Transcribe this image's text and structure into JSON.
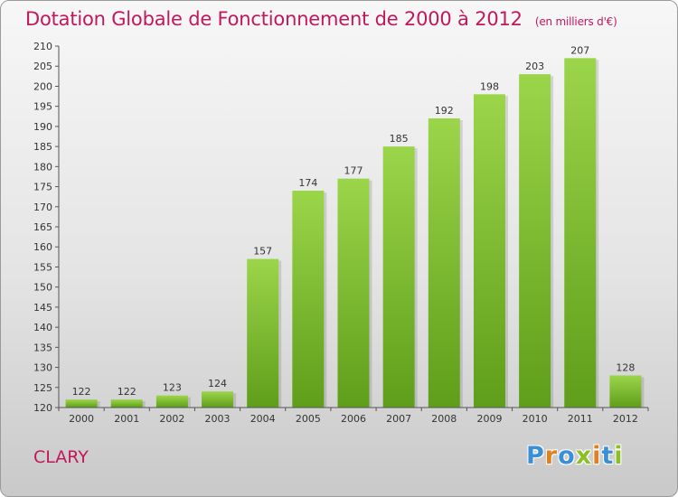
{
  "chart_data": {
    "type": "bar",
    "title": "Dotation Globale de Fonctionnement de 2000 à 2012",
    "unit_note": "(en milliers d'€)",
    "categories": [
      "2000",
      "2001",
      "2002",
      "2003",
      "2004",
      "2005",
      "2006",
      "2007",
      "2008",
      "2009",
      "2010",
      "2011",
      "2012"
    ],
    "values": [
      122,
      122,
      123,
      124,
      157,
      174,
      177,
      185,
      192,
      198,
      203,
      207,
      128
    ],
    "data_labels": [
      "122",
      "122",
      "123",
      "124",
      "157",
      "174",
      "177",
      "185",
      "192",
      "198",
      "203",
      "207",
      "128"
    ],
    "ylim": [
      120,
      210
    ],
    "yticks": [
      "120",
      "125",
      "130",
      "135",
      "140",
      "145",
      "150",
      "155",
      "160",
      "165",
      "170",
      "175",
      "180",
      "185",
      "190",
      "195",
      "200",
      "205",
      "210"
    ],
    "grid": false,
    "bar_color": "#7cc231",
    "bar_color_dark": "#5a9a17"
  },
  "footer": {
    "city": "CLARY",
    "logo_letters": [
      "P",
      "r",
      "o",
      "x",
      "i",
      "t",
      "i"
    ],
    "logo_colors": [
      "#3a8fd6",
      "#e0801f",
      "#3a8fd6",
      "#8cbf26",
      "#e0801f",
      "#3a8fd6",
      "#8cbf26"
    ]
  }
}
